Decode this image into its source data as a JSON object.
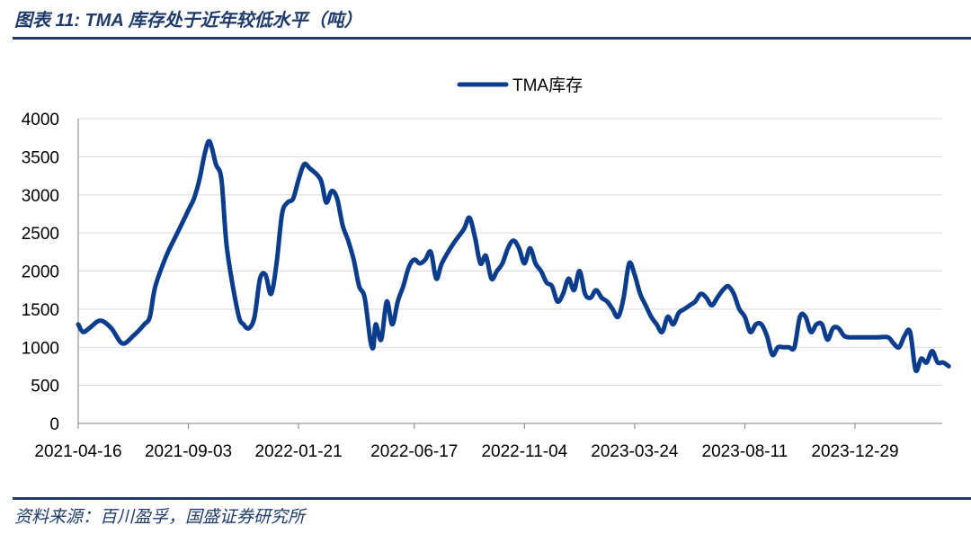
{
  "header": {
    "title": "图表 11:  TMA 库存处于近年较低水平（吨）"
  },
  "footer": {
    "source": "资料来源：百川盈孚，国盛证券研究所"
  },
  "colors": {
    "series": "#0b3d8c",
    "accent": "#1f3a6b",
    "grid": "#d9d9d9"
  },
  "chart_data": {
    "type": "line",
    "title": "",
    "xlabel": "",
    "ylabel": "",
    "ylim": [
      0,
      4000
    ],
    "yticks": [
      0,
      500,
      1000,
      1500,
      2000,
      2500,
      3000,
      3500,
      4000
    ],
    "xticks": [
      "2021-04-16",
      "2021-09-03",
      "2022-01-21",
      "2022-06-17",
      "2022-11-04",
      "2023-03-24",
      "2023-08-11",
      "2023-12-29"
    ],
    "grid": true,
    "legend": {
      "position": "top-center",
      "entries": [
        "TMA库存"
      ]
    },
    "series": [
      {
        "name": "TMA库存",
        "color": "#0b3d8c",
        "points": [
          [
            "2021-04-16",
            1300
          ],
          [
            "2021-04-22",
            1200
          ],
          [
            "2021-04-30",
            1250
          ],
          [
            "2021-05-14",
            1350
          ],
          [
            "2021-05-28",
            1250
          ],
          [
            "2021-06-11",
            1050
          ],
          [
            "2021-06-25",
            1150
          ],
          [
            "2021-07-09",
            1300
          ],
          [
            "2021-07-16",
            1400
          ],
          [
            "2021-07-23",
            1800
          ],
          [
            "2021-08-06",
            2200
          ],
          [
            "2021-08-20",
            2500
          ],
          [
            "2021-09-03",
            2800
          ],
          [
            "2021-09-10",
            2950
          ],
          [
            "2021-09-17",
            3200
          ],
          [
            "2021-09-24",
            3550
          ],
          [
            "2021-09-30",
            3700
          ],
          [
            "2021-10-08",
            3400
          ],
          [
            "2021-10-15",
            3200
          ],
          [
            "2021-10-22",
            2300
          ],
          [
            "2021-11-05",
            1450
          ],
          [
            "2021-11-12",
            1300
          ],
          [
            "2021-11-19",
            1250
          ],
          [
            "2021-11-26",
            1400
          ],
          [
            "2021-12-03",
            1900
          ],
          [
            "2021-12-10",
            1950
          ],
          [
            "2021-12-17",
            1700
          ],
          [
            "2021-12-24",
            2100
          ],
          [
            "2021-12-31",
            2750
          ],
          [
            "2022-01-07",
            2900
          ],
          [
            "2022-01-14",
            2950
          ],
          [
            "2022-01-21",
            3200
          ],
          [
            "2022-01-28",
            3400
          ],
          [
            "2022-02-04",
            3350
          ],
          [
            "2022-02-18",
            3200
          ],
          [
            "2022-02-25",
            2900
          ],
          [
            "2022-03-04",
            3050
          ],
          [
            "2022-03-11",
            2950
          ],
          [
            "2022-03-18",
            2600
          ],
          [
            "2022-03-25",
            2400
          ],
          [
            "2022-04-01",
            2150
          ],
          [
            "2022-04-08",
            1800
          ],
          [
            "2022-04-15",
            1650
          ],
          [
            "2022-04-22",
            1100
          ],
          [
            "2022-04-26",
            1000
          ],
          [
            "2022-04-29",
            1300
          ],
          [
            "2022-05-06",
            1100
          ],
          [
            "2022-05-13",
            1600
          ],
          [
            "2022-05-20",
            1300
          ],
          [
            "2022-05-27",
            1600
          ],
          [
            "2022-06-03",
            1800
          ],
          [
            "2022-06-10",
            2050
          ],
          [
            "2022-06-17",
            2150
          ],
          [
            "2022-06-24",
            2100
          ],
          [
            "2022-07-01",
            2150
          ],
          [
            "2022-07-08",
            2250
          ],
          [
            "2022-07-15",
            1900
          ],
          [
            "2022-07-22",
            2100
          ],
          [
            "2022-08-05",
            2350
          ],
          [
            "2022-08-19",
            2550
          ],
          [
            "2022-08-26",
            2700
          ],
          [
            "2022-09-02",
            2450
          ],
          [
            "2022-09-09",
            2100
          ],
          [
            "2022-09-16",
            2200
          ],
          [
            "2022-09-23",
            1900
          ],
          [
            "2022-09-30",
            2000
          ],
          [
            "2022-10-07",
            2100
          ],
          [
            "2022-10-14",
            2300
          ],
          [
            "2022-10-21",
            2400
          ],
          [
            "2022-10-28",
            2300
          ],
          [
            "2022-11-04",
            2100
          ],
          [
            "2022-11-11",
            2300
          ],
          [
            "2022-11-18",
            2100
          ],
          [
            "2022-11-25",
            2000
          ],
          [
            "2022-12-02",
            1850
          ],
          [
            "2022-12-09",
            1800
          ],
          [
            "2022-12-16",
            1600
          ],
          [
            "2022-12-23",
            1700
          ],
          [
            "2022-12-30",
            1900
          ],
          [
            "2023-01-06",
            1750
          ],
          [
            "2023-01-13",
            2000
          ],
          [
            "2023-01-20",
            1700
          ],
          [
            "2023-01-27",
            1650
          ],
          [
            "2023-02-03",
            1750
          ],
          [
            "2023-02-10",
            1650
          ],
          [
            "2023-02-17",
            1600
          ],
          [
            "2023-02-24",
            1500
          ],
          [
            "2023-03-03",
            1400
          ],
          [
            "2023-03-10",
            1650
          ],
          [
            "2023-03-17",
            2100
          ],
          [
            "2023-03-24",
            1950
          ],
          [
            "2023-03-31",
            1700
          ],
          [
            "2023-04-07",
            1550
          ],
          [
            "2023-04-14",
            1400
          ],
          [
            "2023-04-21",
            1300
          ],
          [
            "2023-04-28",
            1200
          ],
          [
            "2023-05-05",
            1400
          ],
          [
            "2023-05-12",
            1300
          ],
          [
            "2023-05-19",
            1450
          ],
          [
            "2023-05-26",
            1500
          ],
          [
            "2023-06-02",
            1550
          ],
          [
            "2023-06-09",
            1600
          ],
          [
            "2023-06-16",
            1700
          ],
          [
            "2023-06-23",
            1650
          ],
          [
            "2023-06-30",
            1550
          ],
          [
            "2023-07-07",
            1650
          ],
          [
            "2023-07-14",
            1750
          ],
          [
            "2023-07-21",
            1800
          ],
          [
            "2023-07-28",
            1700
          ],
          [
            "2023-08-04",
            1500
          ],
          [
            "2023-08-11",
            1400
          ],
          [
            "2023-08-18",
            1200
          ],
          [
            "2023-08-25",
            1300
          ],
          [
            "2023-09-01",
            1300
          ],
          [
            "2023-09-08",
            1150
          ],
          [
            "2023-09-15",
            900
          ],
          [
            "2023-09-22",
            1000
          ],
          [
            "2023-09-29",
            1000
          ],
          [
            "2023-10-06",
            1000
          ],
          [
            "2023-10-13",
            1000
          ],
          [
            "2023-10-20",
            1400
          ],
          [
            "2023-10-27",
            1400
          ],
          [
            "2023-11-03",
            1200
          ],
          [
            "2023-11-10",
            1300
          ],
          [
            "2023-11-17",
            1300
          ],
          [
            "2023-11-24",
            1100
          ],
          [
            "2023-12-01",
            1250
          ],
          [
            "2023-12-08",
            1250
          ],
          [
            "2023-12-15",
            1150
          ],
          [
            "2023-12-22",
            1130
          ],
          [
            "2023-12-29",
            1130
          ],
          [
            "2024-01-12",
            1130
          ],
          [
            "2024-01-26",
            1130
          ],
          [
            "2024-02-09",
            1130
          ],
          [
            "2024-02-16",
            1050
          ],
          [
            "2024-02-23",
            1000
          ],
          [
            "2024-03-01",
            1150
          ],
          [
            "2024-03-08",
            1200
          ],
          [
            "2024-03-15",
            700
          ],
          [
            "2024-03-22",
            850
          ],
          [
            "2024-03-29",
            800
          ],
          [
            "2024-04-05",
            950
          ],
          [
            "2024-04-12",
            800
          ],
          [
            "2024-04-19",
            800
          ],
          [
            "2024-04-26",
            750
          ]
        ]
      }
    ]
  }
}
